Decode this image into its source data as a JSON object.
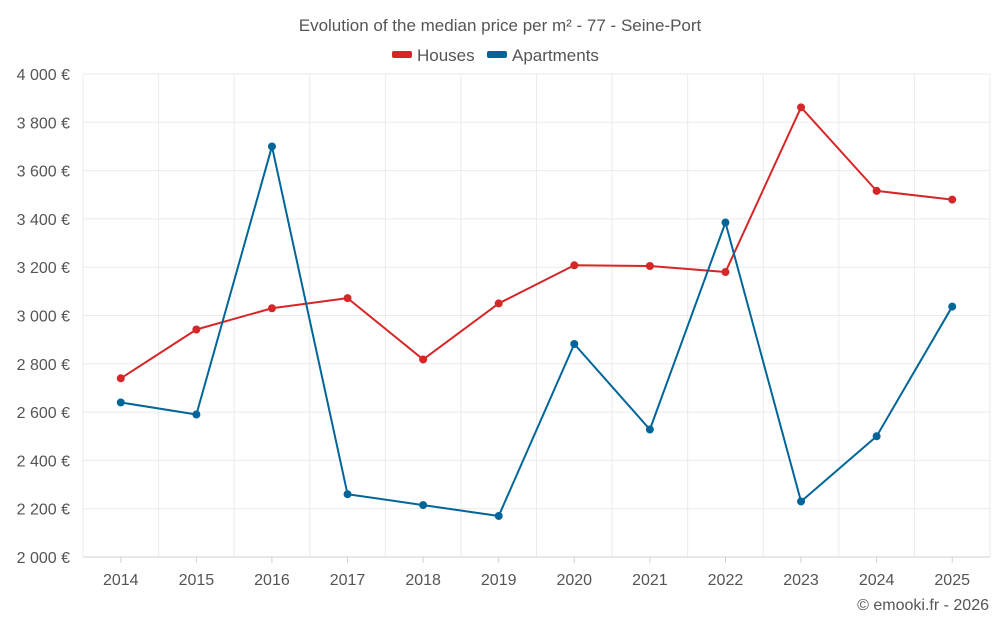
{
  "chart_data": {
    "type": "line",
    "title": "Evolution of the median price per m² - 77 - Seine-Port",
    "xlabel": "",
    "ylabel": "",
    "categories": [
      "2014",
      "2015",
      "2016",
      "2017",
      "2018",
      "2019",
      "2020",
      "2021",
      "2022",
      "2023",
      "2024",
      "2025"
    ],
    "ylim": [
      2000,
      4000
    ],
    "yticks": [
      2000,
      2200,
      2400,
      2600,
      2800,
      3000,
      3200,
      3400,
      3600,
      3800,
      4000
    ],
    "ytick_labels": [
      "2 000 €",
      "2 200 €",
      "2 400 €",
      "2 600 €",
      "2 800 €",
      "3 000 €",
      "3 200 €",
      "3 400 €",
      "3 600 €",
      "3 800 €",
      "4 000 €"
    ],
    "legend_position": "top-center",
    "grid": true,
    "series": [
      {
        "name": "Houses",
        "color": "#d62728",
        "values": [
          2740,
          2942,
          3030,
          3072,
          2818,
          3050,
          3208,
          3205,
          3180,
          3862,
          3516,
          3480
        ]
      },
      {
        "name": "Apartments",
        "color": "#006699",
        "values": [
          2640,
          2590,
          3700,
          2260,
          2215,
          2170,
          2882,
          2528,
          3385,
          2230,
          2500,
          3037
        ]
      }
    ]
  },
  "credit": "© emooki.fr - 2026"
}
